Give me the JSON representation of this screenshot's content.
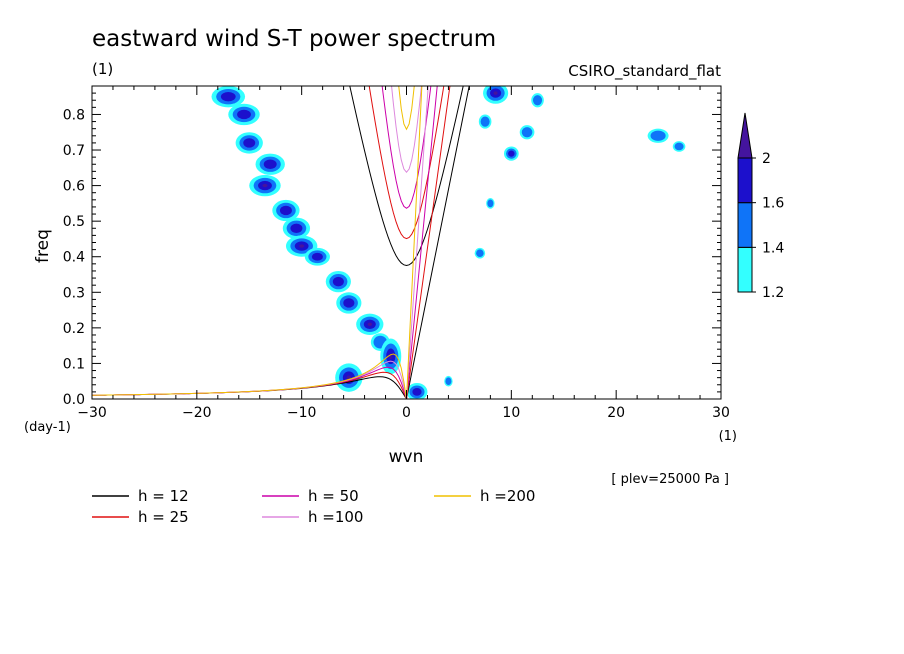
{
  "chart_data": {
    "type": "contour",
    "title": "eastward wind S-T power spectrum",
    "units_label": "(1)",
    "model_label": "CSIRO_standard_flat",
    "xlabel": "wvn",
    "ylabel": "freq",
    "x_units": "(1)",
    "y_units": "(day-1)",
    "level_note": "[ plev=25000 Pa ]",
    "xlim": [
      -30,
      30
    ],
    "ylim": [
      0,
      0.88
    ],
    "x_ticks": [
      -30,
      -20,
      -10,
      0,
      10,
      20,
      30
    ],
    "y_ticks": [
      0,
      0.1,
      0.2,
      0.3,
      0.4,
      0.5,
      0.6,
      0.7,
      0.8
    ],
    "colorbar": {
      "labels": [
        "1.2",
        "1.4",
        "1.6",
        "2"
      ],
      "colors": [
        "#33ffff",
        "#0f74f8",
        "#1c10cc",
        "#44149e"
      ]
    },
    "dispersion_curves": [
      {
        "label": "h = 12",
        "h": 12,
        "color": "#000000"
      },
      {
        "label": "h = 25",
        "h": 25,
        "color": "#e01010"
      },
      {
        "label": "h = 50",
        "h": 50,
        "color": "#cc00aa"
      },
      {
        "label": "h =100",
        "h": 100,
        "color": "#dd88dd"
      },
      {
        "label": "h =200",
        "h": 200,
        "color": "#f0c000"
      }
    ],
    "power_blobs": [
      {
        "k": -17.0,
        "f": 0.85,
        "rk": 1.6,
        "rf": 0.03,
        "level": 2
      },
      {
        "k": -15.5,
        "f": 0.8,
        "rk": 1.5,
        "rf": 0.03,
        "level": 2
      },
      {
        "k": -15.0,
        "f": 0.72,
        "rk": 1.3,
        "rf": 0.03,
        "level": 2
      },
      {
        "k": -13.0,
        "f": 0.66,
        "rk": 1.4,
        "rf": 0.03,
        "level": 2
      },
      {
        "k": -13.5,
        "f": 0.6,
        "rk": 1.5,
        "rf": 0.03,
        "level": 3
      },
      {
        "k": -11.5,
        "f": 0.53,
        "rk": 1.3,
        "rf": 0.03,
        "level": 2
      },
      {
        "k": -10.5,
        "f": 0.48,
        "rk": 1.3,
        "rf": 0.03,
        "level": 2
      },
      {
        "k": -10.0,
        "f": 0.43,
        "rk": 1.5,
        "rf": 0.03,
        "level": 3
      },
      {
        "k": -8.5,
        "f": 0.4,
        "rk": 1.2,
        "rf": 0.025,
        "level": 2
      },
      {
        "k": -6.5,
        "f": 0.33,
        "rk": 1.2,
        "rf": 0.03,
        "level": 2
      },
      {
        "k": -5.5,
        "f": 0.27,
        "rk": 1.2,
        "rf": 0.03,
        "level": 2
      },
      {
        "k": -3.5,
        "f": 0.21,
        "rk": 1.3,
        "rf": 0.03,
        "level": 3
      },
      {
        "k": -2.5,
        "f": 0.16,
        "rk": 0.9,
        "rf": 0.025,
        "level": 1
      },
      {
        "k": -5.5,
        "f": 0.06,
        "rk": 1.3,
        "rf": 0.04,
        "level": 3
      },
      {
        "k": -1.5,
        "f": 0.12,
        "rk": 1.0,
        "rf": 0.05,
        "level": 3
      },
      {
        "k": 1.0,
        "f": 0.02,
        "rk": 1.0,
        "rf": 0.025,
        "level": 2
      },
      {
        "k": 8.5,
        "f": 0.86,
        "rk": 1.2,
        "rf": 0.03,
        "level": 3
      },
      {
        "k": 7.5,
        "f": 0.78,
        "rk": 0.6,
        "rf": 0.02,
        "level": 1
      },
      {
        "k": 10.0,
        "f": 0.69,
        "rk": 0.7,
        "rf": 0.02,
        "level": 2
      },
      {
        "k": 11.5,
        "f": 0.75,
        "rk": 0.7,
        "rf": 0.02,
        "level": 1
      },
      {
        "k": 12.5,
        "f": 0.84,
        "rk": 0.6,
        "rf": 0.02,
        "level": 1
      },
      {
        "k": 7.0,
        "f": 0.41,
        "rk": 0.5,
        "rf": 0.015,
        "level": 1
      },
      {
        "k": 8.0,
        "f": 0.55,
        "rk": 0.4,
        "rf": 0.015,
        "level": 1
      },
      {
        "k": 4.0,
        "f": 0.05,
        "rk": 0.4,
        "rf": 0.015,
        "level": 1
      },
      {
        "k": 24.0,
        "f": 0.74,
        "rk": 1.0,
        "rf": 0.02,
        "level": 1
      },
      {
        "k": 26.0,
        "f": 0.71,
        "rk": 0.6,
        "rf": 0.015,
        "level": 1
      }
    ]
  }
}
